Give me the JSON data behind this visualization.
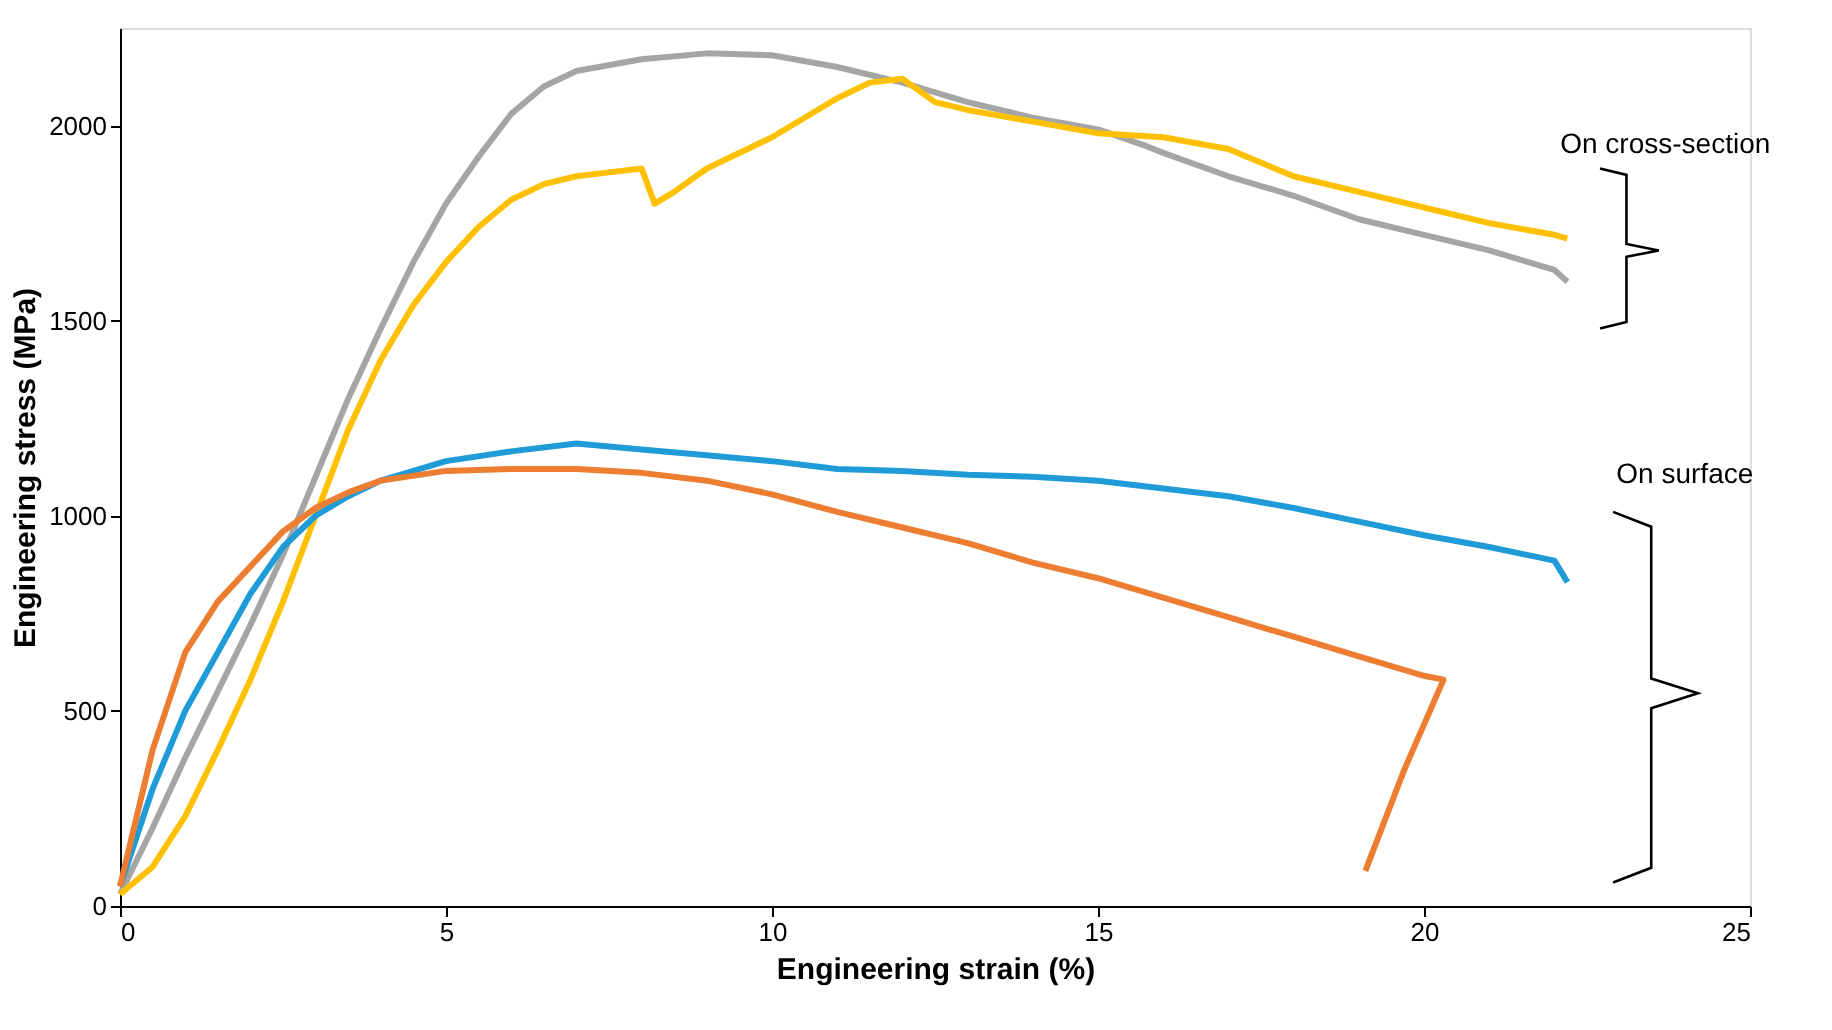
{
  "chart_data": {
    "type": "line",
    "xlabel": "Engineering strain (%)",
    "ylabel": "Engineering stress (MPa)",
    "xlim": [
      0,
      25
    ],
    "xticks": [
      0,
      5,
      10,
      15,
      20,
      25
    ],
    "ylim": [
      0,
      2250
    ],
    "yticks": [
      0,
      500,
      1000,
      1500,
      2000
    ],
    "grid": false,
    "legend": false,
    "annotations": [
      "On cross-section",
      "On surface"
    ],
    "series": [
      {
        "color": "#a5a5a5",
        "x": [
          0,
          0.5,
          1,
          1.5,
          2,
          2.5,
          3,
          3.5,
          4,
          4.5,
          5,
          5.5,
          6,
          6.5,
          7,
          8,
          9,
          10,
          11,
          12,
          13,
          14,
          15,
          15.7,
          16,
          17,
          18,
          19,
          20,
          21,
          22,
          22.2
        ],
        "values": [
          30,
          200,
          380,
          550,
          720,
          900,
          1100,
          1300,
          1480,
          1650,
          1800,
          1920,
          2030,
          2100,
          2140,
          2170,
          2185,
          2180,
          2150,
          2110,
          2060,
          2020,
          1990,
          1950,
          1930,
          1870,
          1820,
          1760,
          1720,
          1680,
          1630,
          1600
        ]
      },
      {
        "color": "#ffc000",
        "x": [
          0,
          0.5,
          1,
          1.5,
          2,
          2.5,
          3,
          3.5,
          4,
          4.5,
          5,
          5.5,
          6,
          6.5,
          7,
          7.5,
          8,
          8.2,
          8.5,
          9,
          10,
          11,
          11.5,
          12,
          12.5,
          13,
          14,
          15,
          16,
          17,
          18,
          19,
          20,
          21,
          22,
          22.2
        ],
        "values": [
          30,
          100,
          230,
          400,
          580,
          780,
          1000,
          1220,
          1400,
          1540,
          1650,
          1740,
          1810,
          1850,
          1870,
          1880,
          1890,
          1800,
          1830,
          1890,
          1970,
          2070,
          2110,
          2120,
          2060,
          2040,
          2010,
          1980,
          1970,
          1940,
          1870,
          1830,
          1790,
          1750,
          1720,
          1710
        ]
      },
      {
        "color": "#1f9bd7",
        "x": [
          0,
          0.5,
          1,
          1.5,
          2,
          2.5,
          3,
          3.5,
          4,
          5,
          6,
          7,
          8,
          9,
          10,
          11,
          12,
          13,
          14,
          15,
          16,
          17,
          18,
          19,
          20,
          21,
          22,
          22.2
        ],
        "values": [
          50,
          300,
          500,
          650,
          800,
          920,
          1000,
          1050,
          1090,
          1140,
          1165,
          1185,
          1170,
          1155,
          1140,
          1120,
          1115,
          1105,
          1100,
          1090,
          1070,
          1050,
          1020,
          985,
          950,
          920,
          885,
          830
        ]
      },
      {
        "color": "#ed7d31",
        "x": [
          0,
          0.5,
          1,
          1.5,
          2,
          2.5,
          3,
          3.5,
          4,
          5,
          6,
          7,
          8,
          9,
          10,
          11,
          12,
          13,
          14,
          15,
          16,
          17,
          18,
          19,
          20,
          20.3,
          19.7,
          19.1
        ],
        "values": [
          50,
          400,
          650,
          780,
          870,
          960,
          1020,
          1060,
          1090,
          1115,
          1120,
          1120,
          1110,
          1090,
          1055,
          1010,
          970,
          930,
          880,
          840,
          790,
          740,
          690,
          640,
          590,
          580,
          350,
          90
        ]
      }
    ]
  }
}
